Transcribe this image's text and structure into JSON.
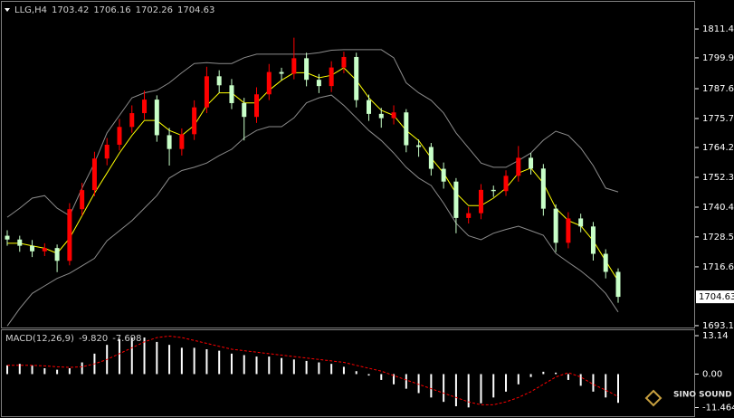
{
  "chart_data": [
    {
      "type": "candlestick",
      "title": "LLG,H4",
      "header_values": [
        1703.42,
        1706.16,
        1702.26,
        1704.63
      ],
      "open": [
        1729.0,
        1727.5,
        1725.0,
        1722.8,
        1724.1,
        1719.0,
        1739.6,
        1747.2,
        1759.8,
        1765.3,
        1772.4,
        1777.9,
        1783.3,
        1769.1,
        1763.6,
        1769.5,
        1780.2,
        1792.6,
        1789.0,
        1781.9,
        1776.4,
        1785.4,
        1794.3,
        1793.6,
        1799.8,
        1791.2,
        1788.7,
        1796.1,
        1800.3,
        1783.1,
        1777.6,
        1775.9,
        1778.2,
        1765.1,
        1764.4,
        1755.7,
        1750.6,
        1736.1,
        1738.0,
        1747.3,
        1746.8,
        1752.9,
        1760.1,
        1755.8,
        1739.8,
        1726.2,
        1735.9,
        1732.7,
        1721.8,
        1714.6
      ],
      "high": [
        1731.2,
        1729.0,
        1727.3,
        1726.0,
        1725.5,
        1742.0,
        1750.1,
        1762.5,
        1768.0,
        1775.6,
        1781.0,
        1786.9,
        1785.0,
        1772.0,
        1771.8,
        1783.0,
        1796.4,
        1795.0,
        1791.5,
        1784.0,
        1788.2,
        1797.5,
        1796.0,
        1808.0,
        1802.0,
        1793.5,
        1798.6,
        1802.4,
        1802.0,
        1785.3,
        1780.0,
        1781.0,
        1779.5,
        1767.4,
        1766.0,
        1758.2,
        1752.0,
        1740.5,
        1749.6,
        1749.0,
        1755.1,
        1764.8,
        1762.0,
        1757.6,
        1741.5,
        1738.4,
        1737.8,
        1734.5,
        1723.6,
        1716.0
      ],
      "low": [
        1725.0,
        1722.6,
        1720.5,
        1720.9,
        1714.5,
        1717.2,
        1737.0,
        1744.8,
        1757.1,
        1763.0,
        1770.1,
        1775.4,
        1766.5,
        1757.0,
        1761.0,
        1767.2,
        1777.9,
        1786.1,
        1779.5,
        1767.0,
        1774.0,
        1783.1,
        1790.9,
        1791.4,
        1788.6,
        1785.9,
        1786.3,
        1793.8,
        1780.2,
        1774.8,
        1772.1,
        1773.4,
        1762.3,
        1760.5,
        1753.0,
        1747.8,
        1730.0,
        1733.9,
        1735.6,
        1744.5,
        1744.9,
        1750.6,
        1753.4,
        1737.0,
        1722.5,
        1724.0,
        1730.4,
        1719.1,
        1712.0,
        1702.3
      ],
      "close": [
        1727.5,
        1725.0,
        1722.8,
        1724.1,
        1719.0,
        1739.6,
        1747.2,
        1759.8,
        1765.3,
        1772.4,
        1777.9,
        1783.3,
        1769.1,
        1763.6,
        1769.5,
        1780.2,
        1792.6,
        1789.0,
        1781.9,
        1776.4,
        1785.4,
        1794.3,
        1793.6,
        1799.8,
        1791.2,
        1788.7,
        1796.1,
        1800.3,
        1783.1,
        1777.6,
        1775.9,
        1778.2,
        1765.1,
        1764.4,
        1755.7,
        1750.6,
        1736.1,
        1738.0,
        1747.3,
        1746.8,
        1752.9,
        1760.1,
        1755.8,
        1739.8,
        1726.2,
        1735.9,
        1732.7,
        1721.8,
        1714.6,
        1704.63
      ],
      "up_color": "#ff0000",
      "down_color": "#c8ffc8",
      "overlays": [
        {
          "color": "#8c8c8c",
          "values": [
            1736.4,
            1740,
            1744,
            1745,
            1740,
            1737,
            1748,
            1758,
            1770,
            1777,
            1784,
            1786,
            1787,
            1790,
            1794,
            1797.7,
            1798,
            1797.7,
            1797.7,
            1800,
            1801.4,
            1801.4,
            1801.4,
            1801.4,
            1801.4,
            1802,
            1803,
            1803.2,
            1803.2,
            1803.2,
            1803.2,
            1800,
            1790,
            1786,
            1783,
            1778,
            1770,
            1764,
            1758,
            1756.3,
            1756.3,
            1759,
            1762,
            1767.1,
            1770.7,
            1769,
            1764,
            1757,
            1748,
            1746.5
          ]
        },
        {
          "color": "#8c8c8c",
          "values": [
            1693,
            1700,
            1706,
            1709,
            1712,
            1714,
            1717,
            1720,
            1727,
            1731,
            1735,
            1740,
            1745,
            1752,
            1755,
            1756.3,
            1758,
            1761,
            1763.5,
            1768,
            1771,
            1772.5,
            1772.5,
            1776,
            1782,
            1784,
            1785.1,
            1781,
            1776,
            1771,
            1767,
            1762,
            1756.3,
            1752,
            1749,
            1742,
            1734,
            1729,
            1727.4,
            1730,
            1731.5,
            1732.8,
            1731,
            1729.2,
            1722,
            1718.4,
            1715,
            1711,
            1706,
            1698.6
          ]
        },
        {
          "color": "#ffff00",
          "values": [
            1726,
            1726,
            1725,
            1724,
            1722,
            1728,
            1737,
            1746,
            1754,
            1762,
            1769,
            1775,
            1775,
            1771,
            1769,
            1773,
            1781,
            1786,
            1786,
            1782,
            1782,
            1787,
            1791,
            1794,
            1794,
            1792,
            1793,
            1796,
            1791,
            1784,
            1779,
            1777,
            1771,
            1767,
            1760,
            1754,
            1746,
            1741,
            1741,
            1744,
            1748,
            1754,
            1756,
            1750,
            1740,
            1735,
            1733,
            1727,
            1719,
            1711
          ]
        }
      ],
      "ylim": [
        1692.4,
        1822.3
      ],
      "yticks": [
        1811.45,
        1799.95,
        1787.65,
        1775.75,
        {
          "value": 1764.2,
          "label": "1764.20"
        },
        {
          "value": 1752.3,
          "label": "1752.30"
        },
        {
          "value": 1740.4,
          "label": "1740.40"
        },
        1728.55,
        {
          "value": 1716.6,
          "label": "1716.60"
        },
        1693.15
      ],
      "last_price": 1704.63
    },
    {
      "type": "macd",
      "title": "MACD(12,26,9)",
      "header_values": [
        {
          "value": -9.82,
          "label": "-9.820"
        },
        -7.698
      ],
      "histogram": [
        3,
        3.5,
        3,
        2,
        1.5,
        2,
        4,
        7,
        10,
        12,
        12.5,
        12.5,
        11,
        10,
        9,
        9,
        8.5,
        8,
        7,
        6.5,
        6,
        6,
        5.5,
        5,
        4.5,
        4,
        3.5,
        2.5,
        1,
        -0.5,
        -2,
        -3.5,
        -5,
        -6.5,
        -8,
        -9.5,
        -11,
        -11.4,
        -10,
        -8,
        -6,
        -3.5,
        -1,
        0.8,
        0.5,
        -2,
        -4,
        -6,
        -8,
        -9.82
      ],
      "signal": [
        3,
        3,
        3,
        2.8,
        2.5,
        2.3,
        2.5,
        3.5,
        5,
        7,
        9,
        11,
        12.5,
        13,
        12.5,
        11.5,
        10.5,
        9.5,
        8.5,
        8,
        7.5,
        7,
        6.5,
        6,
        5.5,
        5,
        4.5,
        4,
        3,
        2,
        1,
        -0.5,
        -2,
        -3.5,
        -5,
        -6.5,
        -8,
        -9.5,
        -10.5,
        -10.5,
        -9.5,
        -8,
        -6,
        -3.5,
        -1,
        0.5,
        -1,
        -3.5,
        -5.5,
        -7.698
      ],
      "hist_color": "#ffffff",
      "signal_color": "#ff0000",
      "ylim": [
        -14.4,
        15
      ],
      "yticks": [
        13.14,
        {
          "value": 0,
          "label": "0.00"
        },
        -11.464
      ]
    }
  ],
  "watermark": "SINO SOUND"
}
